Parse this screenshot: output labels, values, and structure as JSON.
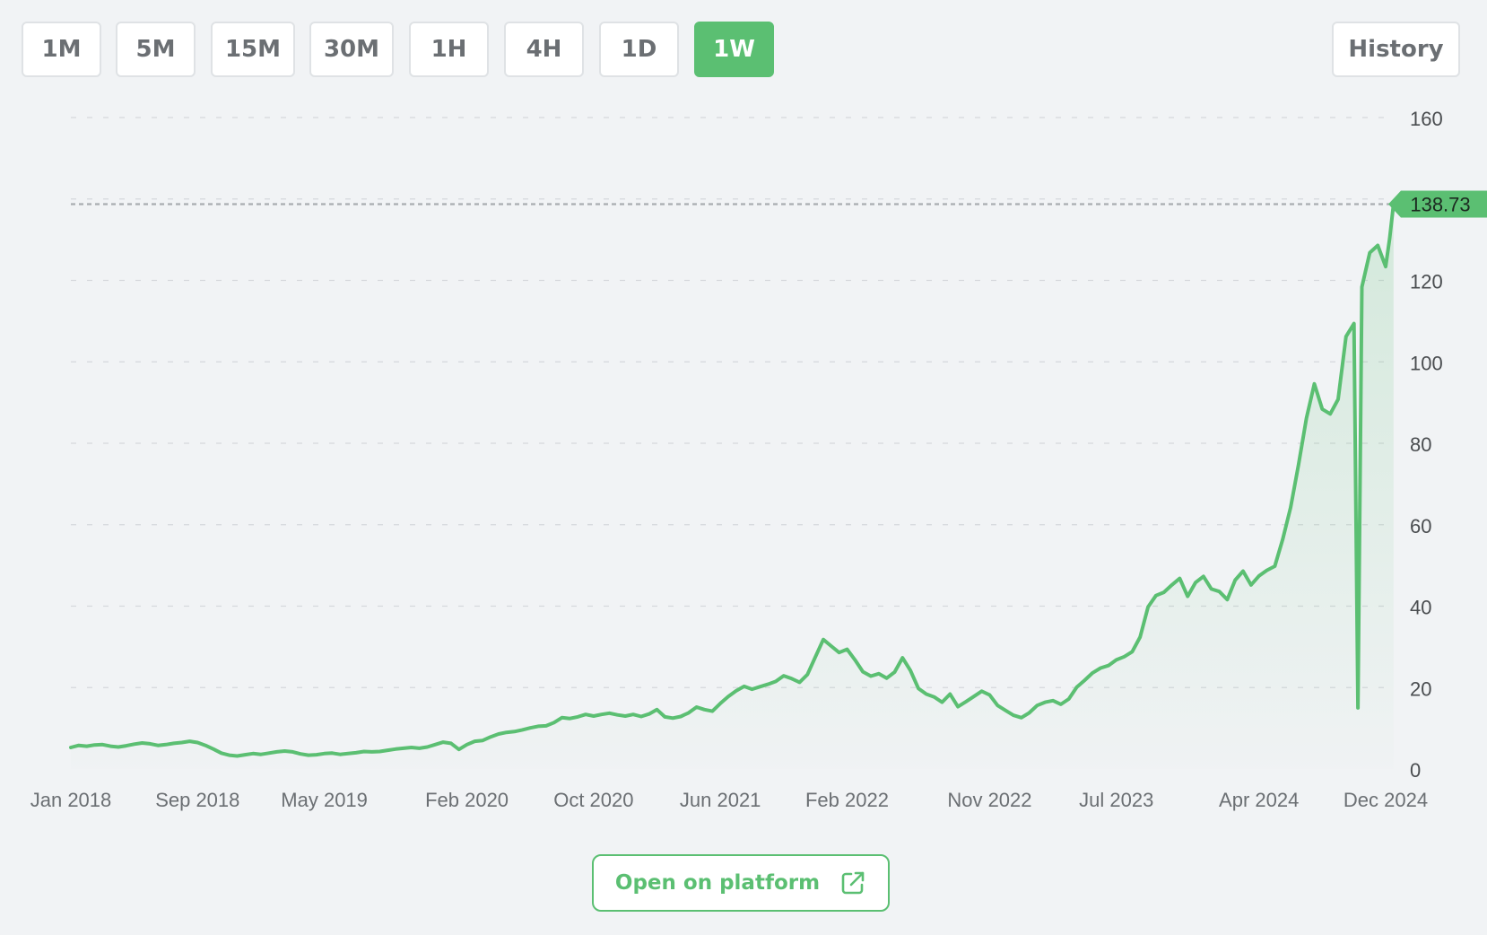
{
  "timeframes": [
    {
      "label": "1M",
      "active": false
    },
    {
      "label": "5M",
      "active": false
    },
    {
      "label": "15M",
      "active": false
    },
    {
      "label": "30M",
      "active": false
    },
    {
      "label": "1H",
      "active": false
    },
    {
      "label": "4H",
      "active": false
    },
    {
      "label": "1D",
      "active": false
    },
    {
      "label": "1W",
      "active": true
    }
  ],
  "history_label": "History",
  "open_platform_label": "Open on platform",
  "icons": {
    "open_platform": "external-link-icon"
  },
  "colors": {
    "accent": "#5bbf72",
    "line": "#5bbf72",
    "button_text": "#6b6f73",
    "background": "#f1f3f5"
  },
  "chart_data": {
    "type": "area",
    "title": "",
    "xlabel": "",
    "ylabel": "",
    "ylim": [
      0,
      160
    ],
    "y_ticks": [
      "0",
      "20",
      "40",
      "60",
      "80",
      "100",
      "120",
      "160"
    ],
    "x_ticks": [
      {
        "label": "Jan 2018",
        "x": 0
      },
      {
        "label": "Sep 2018",
        "x": 8
      },
      {
        "label": "May 2019",
        "x": 16
      },
      {
        "label": "Feb 2020",
        "x": 25
      },
      {
        "label": "Oct 2020",
        "x": 33
      },
      {
        "label": "Jun 2021",
        "x": 41
      },
      {
        "label": "Feb 2022",
        "x": 49
      },
      {
        "label": "Nov 2022",
        "x": 58
      },
      {
        "label": "Jul 2023",
        "x": 66
      },
      {
        "label": "Apr 2024",
        "x": 75
      },
      {
        "label": "Dec 2024",
        "x": 83
      }
    ],
    "x_unit": "months since Jan 2018",
    "xlim": [
      0,
      83.6
    ],
    "current_price": 138.73,
    "current_price_label": "138.73",
    "grid": true,
    "legend": "none",
    "series": [
      {
        "points": [
          [
            0,
            5.3
          ],
          [
            0.5,
            5.8
          ],
          [
            1,
            5.6
          ],
          [
            1.5,
            5.9
          ],
          [
            2,
            6.0
          ],
          [
            2.5,
            5.6
          ],
          [
            3,
            5.4
          ],
          [
            3.5,
            5.7
          ],
          [
            4,
            6.1
          ],
          [
            4.5,
            6.4
          ],
          [
            5,
            6.2
          ],
          [
            5.5,
            5.8
          ],
          [
            6,
            6.0
          ],
          [
            6.5,
            6.3
          ],
          [
            7,
            6.5
          ],
          [
            7.5,
            6.8
          ],
          [
            8,
            6.5
          ],
          [
            8.5,
            5.8
          ],
          [
            9,
            4.9
          ],
          [
            9.5,
            3.9
          ],
          [
            10,
            3.4
          ],
          [
            10.5,
            3.2
          ],
          [
            11,
            3.5
          ],
          [
            11.5,
            3.8
          ],
          [
            12,
            3.6
          ],
          [
            12.5,
            3.9
          ],
          [
            13,
            4.2
          ],
          [
            13.5,
            4.4
          ],
          [
            14,
            4.2
          ],
          [
            14.5,
            3.7
          ],
          [
            15,
            3.4
          ],
          [
            15.5,
            3.5
          ],
          [
            16,
            3.8
          ],
          [
            16.5,
            3.9
          ],
          [
            17,
            3.6
          ],
          [
            17.5,
            3.8
          ],
          [
            18,
            4.0
          ],
          [
            18.5,
            4.3
          ],
          [
            19,
            4.2
          ],
          [
            19.5,
            4.3
          ],
          [
            20,
            4.6
          ],
          [
            20.5,
            4.9
          ],
          [
            21,
            5.1
          ],
          [
            21.5,
            5.3
          ],
          [
            22,
            5.1
          ],
          [
            22.5,
            5.4
          ],
          [
            23,
            6.0
          ],
          [
            23.5,
            6.6
          ],
          [
            24,
            6.3
          ],
          [
            24.5,
            4.8
          ],
          [
            25,
            6.0
          ],
          [
            25.5,
            6.8
          ],
          [
            26,
            7.0
          ],
          [
            26.5,
            7.9
          ],
          [
            27,
            8.6
          ],
          [
            27.5,
            9.0
          ],
          [
            28,
            9.2
          ],
          [
            28.5,
            9.6
          ],
          [
            29,
            10.1
          ],
          [
            29.5,
            10.5
          ],
          [
            30,
            10.6
          ],
          [
            30.5,
            11.4
          ],
          [
            31,
            12.6
          ],
          [
            31.5,
            12.4
          ],
          [
            32,
            12.8
          ],
          [
            32.5,
            13.4
          ],
          [
            33,
            13.0
          ],
          [
            33.5,
            13.4
          ],
          [
            34,
            13.7
          ],
          [
            34.5,
            13.3
          ],
          [
            35,
            13.0
          ],
          [
            35.5,
            13.4
          ],
          [
            36,
            12.9
          ],
          [
            36.5,
            13.5
          ],
          [
            37,
            14.6
          ],
          [
            37.5,
            12.8
          ],
          [
            38,
            12.5
          ],
          [
            38.5,
            12.9
          ],
          [
            39,
            13.8
          ],
          [
            39.5,
            15.2
          ],
          [
            40,
            14.6
          ],
          [
            40.5,
            14.2
          ],
          [
            41,
            16.1
          ],
          [
            41.5,
            17.8
          ],
          [
            42,
            19.2
          ],
          [
            42.5,
            20.3
          ],
          [
            43,
            19.6
          ],
          [
            43.5,
            20.2
          ],
          [
            44,
            20.8
          ],
          [
            44.5,
            21.5
          ],
          [
            45,
            22.9
          ],
          [
            45.5,
            22.2
          ],
          [
            46,
            21.3
          ],
          [
            46.5,
            23.2
          ],
          [
            47,
            27.5
          ],
          [
            47.5,
            31.8
          ],
          [
            48,
            30.2
          ],
          [
            48.5,
            28.6
          ],
          [
            49,
            29.4
          ],
          [
            49.5,
            26.8
          ],
          [
            50,
            23.9
          ],
          [
            50.5,
            22.8
          ],
          [
            51,
            23.4
          ],
          [
            51.5,
            22.3
          ],
          [
            52,
            23.8
          ],
          [
            52.5,
            27.3
          ],
          [
            53,
            24.2
          ],
          [
            53.5,
            19.8
          ],
          [
            54,
            18.4
          ],
          [
            54.5,
            17.7
          ],
          [
            55,
            16.4
          ],
          [
            55.5,
            18.4
          ],
          [
            56,
            15.3
          ],
          [
            56.5,
            16.5
          ],
          [
            57,
            17.8
          ],
          [
            57.5,
            19.1
          ],
          [
            58,
            18.2
          ],
          [
            58.5,
            15.6
          ],
          [
            59,
            14.4
          ],
          [
            59.5,
            13.2
          ],
          [
            60,
            12.6
          ],
          [
            60.5,
            13.8
          ],
          [
            61,
            15.6
          ],
          [
            61.5,
            16.4
          ],
          [
            62,
            16.8
          ],
          [
            62.5,
            15.9
          ],
          [
            63,
            17.2
          ],
          [
            63.5,
            20.1
          ],
          [
            64,
            21.8
          ],
          [
            64.5,
            23.6
          ],
          [
            65,
            24.8
          ],
          [
            65.5,
            25.4
          ],
          [
            66,
            26.8
          ],
          [
            66.5,
            27.6
          ],
          [
            67,
            28.8
          ],
          [
            67.5,
            32.4
          ],
          [
            68,
            39.8
          ],
          [
            68.5,
            42.6
          ],
          [
            69,
            43.4
          ],
          [
            69.5,
            45.2
          ],
          [
            70,
            46.8
          ],
          [
            70.5,
            42.4
          ],
          [
            71,
            45.8
          ],
          [
            71.5,
            47.3
          ],
          [
            72,
            44.2
          ],
          [
            72.5,
            43.6
          ],
          [
            73,
            41.6
          ],
          [
            73.5,
            46.4
          ],
          [
            74,
            48.6
          ],
          [
            74.5,
            45.2
          ],
          [
            75,
            47.4
          ],
          [
            75.5,
            48.8
          ],
          [
            76,
            49.8
          ],
          [
            76.5,
            56.4
          ],
          [
            77,
            64.2
          ],
          [
            77.5,
            74.8
          ],
          [
            78,
            86.2
          ],
          [
            78.5,
            94.6
          ],
          [
            79,
            88.4
          ],
          [
            79.5,
            87.2
          ],
          [
            80,
            90.8
          ],
          [
            80.5,
            106.2
          ],
          [
            81,
            109.4
          ],
          [
            81.25,
            15.0
          ],
          [
            81.5,
            118.4
          ],
          [
            82,
            126.8
          ],
          [
            82.5,
            128.6
          ],
          [
            83,
            123.4
          ],
          [
            83.25,
            130.2
          ],
          [
            83.5,
            138.73
          ]
        ]
      }
    ]
  }
}
